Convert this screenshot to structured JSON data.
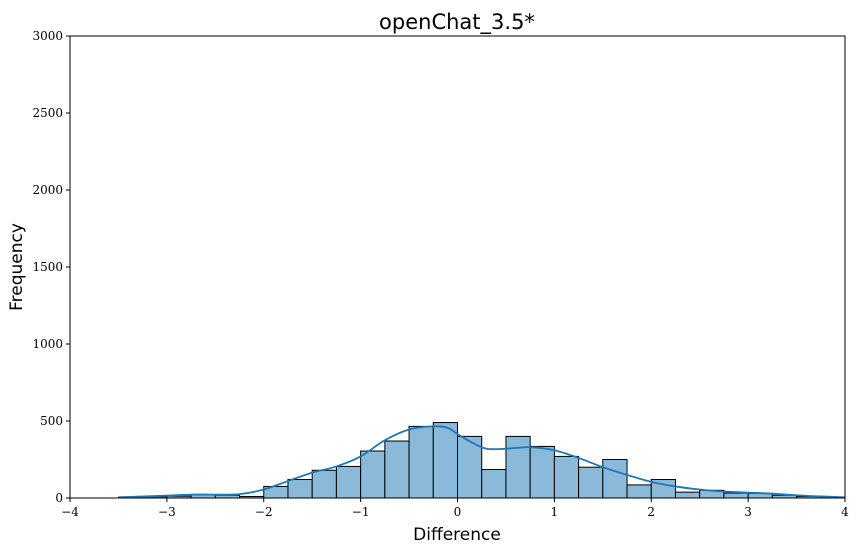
{
  "chart_data": {
    "type": "bar",
    "title": "openChat_3.5*",
    "xlabel": "Difference",
    "ylabel": "Frequency",
    "xlim": [
      -4,
      4
    ],
    "ylim": [
      0,
      3000
    ],
    "grid": false,
    "legend": "none",
    "bar_color": "#8ab9d9",
    "edge_color": "#000000",
    "kde_color": "#1f77b4",
    "x_ticks": [
      {
        "value": -4,
        "label": "−4"
      },
      {
        "value": -3,
        "label": "−3"
      },
      {
        "value": -2,
        "label": "−2"
      },
      {
        "value": -1,
        "label": "−1"
      },
      {
        "value": 0,
        "label": "0"
      },
      {
        "value": 1,
        "label": "1"
      },
      {
        "value": 2,
        "label": "2"
      },
      {
        "value": 3,
        "label": "3"
      },
      {
        "value": 4,
        "label": "4"
      }
    ],
    "y_ticks": [
      {
        "value": 0,
        "label": "0"
      },
      {
        "value": 500,
        "label": "500"
      },
      {
        "value": 1000,
        "label": "1000"
      },
      {
        "value": 1500,
        "label": "1500"
      },
      {
        "value": 2000,
        "label": "2000"
      },
      {
        "value": 2500,
        "label": "2500"
      },
      {
        "value": 3000,
        "label": "3000"
      }
    ],
    "bins": [
      {
        "x0": -3.5,
        "x1": -3.25,
        "count": 5
      },
      {
        "x0": -3.25,
        "x1": -3.0,
        "count": 8
      },
      {
        "x0": -3.0,
        "x1": -2.75,
        "count": 12
      },
      {
        "x0": -2.75,
        "x1": -2.5,
        "count": 22
      },
      {
        "x0": -2.5,
        "x1": -2.25,
        "count": 18
      },
      {
        "x0": -2.25,
        "x1": -2.0,
        "count": 10
      },
      {
        "x0": -2.0,
        "x1": -1.75,
        "count": 75
      },
      {
        "x0": -1.75,
        "x1": -1.5,
        "count": 120
      },
      {
        "x0": -1.5,
        "x1": -1.25,
        "count": 180
      },
      {
        "x0": -1.25,
        "x1": -1.0,
        "count": 205
      },
      {
        "x0": -1.0,
        "x1": -0.75,
        "count": 305
      },
      {
        "x0": -0.75,
        "x1": -0.5,
        "count": 370
      },
      {
        "x0": -0.5,
        "x1": -0.25,
        "count": 465
      },
      {
        "x0": -0.25,
        "x1": 0.0,
        "count": 490
      },
      {
        "x0": 0.0,
        "x1": 0.25,
        "count": 400
      },
      {
        "x0": 0.25,
        "x1": 0.5,
        "count": 185
      },
      {
        "x0": 0.5,
        "x1": 0.75,
        "count": 400
      },
      {
        "x0": 0.75,
        "x1": 1.0,
        "count": 335
      },
      {
        "x0": 1.0,
        "x1": 1.25,
        "count": 270
      },
      {
        "x0": 1.25,
        "x1": 1.5,
        "count": 200
      },
      {
        "x0": 1.5,
        "x1": 1.75,
        "count": 250
      },
      {
        "x0": 1.75,
        "x1": 2.0,
        "count": 85
      },
      {
        "x0": 2.0,
        "x1": 2.25,
        "count": 120
      },
      {
        "x0": 2.25,
        "x1": 2.5,
        "count": 38
      },
      {
        "x0": 2.5,
        "x1": 2.75,
        "count": 50
      },
      {
        "x0": 2.75,
        "x1": 3.0,
        "count": 32
      },
      {
        "x0": 3.0,
        "x1": 3.25,
        "count": 30
      },
      {
        "x0": 3.25,
        "x1": 3.5,
        "count": 18
      },
      {
        "x0": 3.5,
        "x1": 3.75,
        "count": 10
      },
      {
        "x0": 3.75,
        "x1": 4.0,
        "count": 5
      }
    ],
    "kde": {
      "x": [
        -3.5,
        -3.0,
        -2.75,
        -2.5,
        -2.25,
        -2.0,
        -1.75,
        -1.5,
        -1.25,
        -1.0,
        -0.75,
        -0.5,
        -0.25,
        -0.1,
        0.0,
        0.15,
        0.3,
        0.5,
        0.75,
        1.0,
        1.25,
        1.5,
        1.75,
        2.0,
        2.25,
        2.5,
        2.75,
        3.0,
        3.25,
        3.5,
        3.75,
        4.0
      ],
      "y": [
        5,
        15,
        22,
        22,
        25,
        55,
        110,
        165,
        205,
        270,
        375,
        445,
        465,
        455,
        415,
        360,
        320,
        320,
        330,
        310,
        260,
        200,
        150,
        105,
        75,
        55,
        42,
        35,
        28,
        18,
        10,
        5
      ]
    }
  }
}
